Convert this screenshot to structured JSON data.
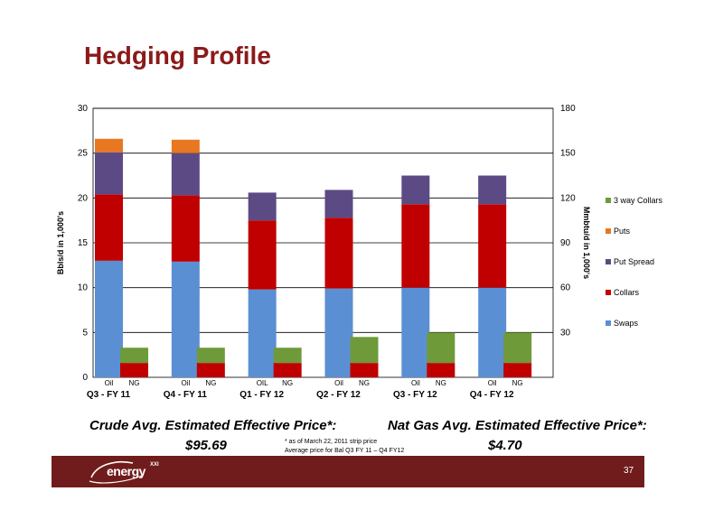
{
  "title": "Hedging Profile",
  "chart_data": {
    "type": "bar",
    "stacked": true,
    "groups": [
      "Q3 - FY 11",
      "Q4 - FY 11",
      "Q1 - FY 12",
      "Q2 - FY 12",
      "Q3 - FY 12",
      "Q4 - FY 12"
    ],
    "sub_labels": [
      [
        "Oil",
        "NG"
      ],
      [
        "Oil",
        "NG"
      ],
      [
        "OIL",
        "NG"
      ],
      [
        "Oil",
        "NG"
      ],
      [
        "Oil",
        "NG"
      ],
      [
        "Oil",
        "NG"
      ]
    ],
    "ylabel": "Bbls/d in 1,000's",
    "y2label": "Mmbtu/d in 1,000's",
    "ylim": [
      0,
      30
    ],
    "y2lim": [
      0,
      180
    ],
    "yticks": [
      0,
      5,
      10,
      15,
      20,
      25,
      30
    ],
    "y2ticks": [
      30,
      60,
      90,
      120,
      150,
      180
    ],
    "legend_position": "right",
    "series": [
      {
        "name": "Swaps",
        "color": "#5b8fd4",
        "oil": [
          13.0,
          12.9,
          9.8,
          9.9,
          10.0,
          10.0
        ],
        "ng": [
          0,
          0,
          0,
          0,
          0,
          0
        ]
      },
      {
        "name": "Collars",
        "color": "#c00000",
        "oil": [
          7.4,
          7.4,
          7.7,
          7.9,
          9.3,
          9.3
        ],
        "ng": [
          1.6,
          1.6,
          1.6,
          1.6,
          1.6,
          1.6
        ]
      },
      {
        "name": "Put Spread",
        "color": "#5c4a85",
        "oil": [
          4.7,
          4.7,
          3.1,
          3.1,
          3.2,
          3.2
        ],
        "ng": [
          0,
          0,
          0,
          0,
          0,
          0
        ]
      },
      {
        "name": "Puts",
        "color": "#e87722",
        "oil": [
          1.5,
          1.5,
          0,
          0,
          0,
          0
        ],
        "ng": [
          0,
          0,
          0,
          0,
          0,
          0
        ]
      },
      {
        "name": "3 way Collars",
        "color": "#6e9a3a",
        "oil": [
          0,
          0,
          0,
          0,
          0,
          0
        ],
        "ng": [
          1.7,
          1.7,
          1.7,
          2.9,
          3.4,
          3.4
        ]
      }
    ],
    "legend_order": [
      "3 way Collars",
      "Puts",
      "Put Spread",
      "Collars",
      "Swaps"
    ]
  },
  "crude": {
    "label": "Crude Avg. Estimated Effective Price*:",
    "value": "$95.69"
  },
  "natgas": {
    "label": "Nat Gas Avg. Estimated Effective Price*:",
    "value": "$4.70"
  },
  "footnote": {
    "line1": "* as of  March 22, 2011 strip price",
    "line2": "Average price for Bal Q3 FY 11 – Q4 FY12"
  },
  "logo": {
    "name": "energy",
    "suffix": "XXI"
  },
  "page_number": "37"
}
